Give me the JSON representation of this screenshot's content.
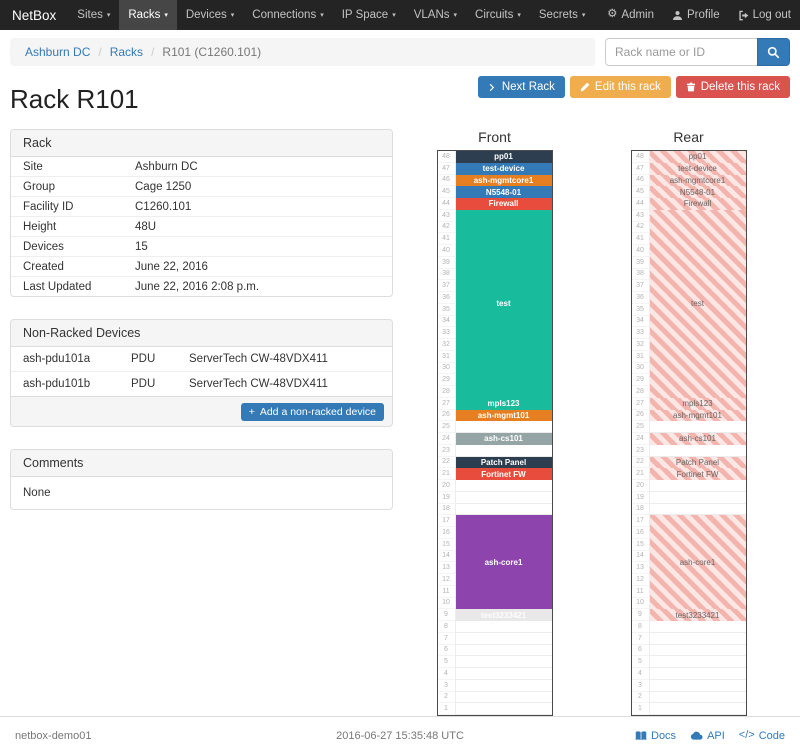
{
  "colors": {
    "primary": "#337ab7",
    "warning": "#f0ad4e",
    "danger": "#d9534f",
    "navbar": "#242424"
  },
  "navbar": {
    "brand": "NetBox",
    "items": [
      {
        "label": "Sites"
      },
      {
        "label": "Racks",
        "active": true
      },
      {
        "label": "Devices"
      },
      {
        "label": "Connections"
      },
      {
        "label": "IP Space"
      },
      {
        "label": "VLANs"
      },
      {
        "label": "Circuits"
      },
      {
        "label": "Secrets"
      }
    ],
    "right": [
      {
        "label": "Admin",
        "icon": "gear-icon"
      },
      {
        "label": "Profile",
        "icon": "user-icon"
      },
      {
        "label": "Log out",
        "icon": "logout-icon"
      }
    ]
  },
  "breadcrumb": {
    "items": [
      "Ashburn DC",
      "Racks",
      "R101 (C1260.101)"
    ]
  },
  "search": {
    "placeholder": "Rack name or ID",
    "icon": "search-icon"
  },
  "page": {
    "title": "Rack R101",
    "actions": [
      {
        "label": "Next Rack",
        "style": "primary",
        "icon": "chevron-right-icon"
      },
      {
        "label": "Edit this rack",
        "style": "warning",
        "icon": "pencil-icon"
      },
      {
        "label": "Delete this rack",
        "style": "danger",
        "icon": "trash-icon"
      }
    ]
  },
  "rack_panel": {
    "title": "Rack",
    "rows": [
      {
        "label": "Site",
        "value": "Ashburn DC",
        "link": true
      },
      {
        "label": "Group",
        "value": "Cage 1250",
        "link": true
      },
      {
        "label": "Facility ID",
        "value": "C1260.101"
      },
      {
        "label": "Height",
        "value": "48U"
      },
      {
        "label": "Devices",
        "value": "15",
        "link": true
      },
      {
        "label": "Created",
        "value": "June 22, 2016"
      },
      {
        "label": "Last Updated",
        "value": "June 22, 2016 2:08 p.m."
      }
    ]
  },
  "nonracked_panel": {
    "title": "Non-Racked Devices",
    "rows": [
      {
        "name": "ash-pdu101a",
        "role": "PDU",
        "type": "ServerTech CW-48VDX411"
      },
      {
        "name": "ash-pdu101b",
        "role": "PDU",
        "type": "ServerTech CW-48VDX411"
      }
    ],
    "add_button": {
      "label": "Add a non-racked device",
      "icon": "plus-icon"
    }
  },
  "comments_panel": {
    "title": "Comments",
    "body": "None"
  },
  "elevations": {
    "front_title": "Front",
    "rear_title": "Rear",
    "units_total": 48,
    "devices": [
      {
        "top_u": 48,
        "height": 1,
        "label": "pp01",
        "color": "#2c3e50"
      },
      {
        "top_u": 47,
        "height": 1,
        "label": "test-device",
        "color": "#337ab7"
      },
      {
        "top_u": 46,
        "height": 1,
        "label": "ash-mgmtcore1",
        "color": "#e67e22"
      },
      {
        "top_u": 45,
        "height": 1,
        "label": "N5548-01",
        "color": "#337ab7"
      },
      {
        "top_u": 44,
        "height": 1,
        "label": "Firewall",
        "color": "#e74c3c"
      },
      {
        "top_u": 43,
        "height": 16,
        "label": "test",
        "color": "#18bc9c"
      },
      {
        "top_u": 27,
        "height": 1,
        "label": "mpls123",
        "color": "#18bc9c"
      },
      {
        "top_u": 26,
        "height": 1,
        "label": "ash-mgmt101",
        "color": "#e67e22"
      },
      {
        "top_u": 24,
        "height": 1,
        "label": "ash-cs101",
        "color": "#95a5a6"
      },
      {
        "top_u": 22,
        "height": 1,
        "label": "Patch Panel",
        "color": "#2c3e50"
      },
      {
        "top_u": 21,
        "height": 1,
        "label": "Fortinet FW",
        "color": "#e74c3c"
      },
      {
        "top_u": 17,
        "height": 8,
        "label": "ash-core1",
        "color": "#8e44ad"
      },
      {
        "top_u": 9,
        "height": 1,
        "label": "test3233421",
        "color": "#e8e8e8",
        "text_color": "#fdfdfd"
      }
    ]
  },
  "footer": {
    "hostname": "netbox-demo01",
    "timestamp": "2016-06-27 15:35:48 UTC",
    "links": [
      {
        "label": "Docs",
        "icon": "book-icon"
      },
      {
        "label": "API",
        "icon": "cloud-icon"
      },
      {
        "label": "Code",
        "icon": "code-icon"
      }
    ]
  }
}
